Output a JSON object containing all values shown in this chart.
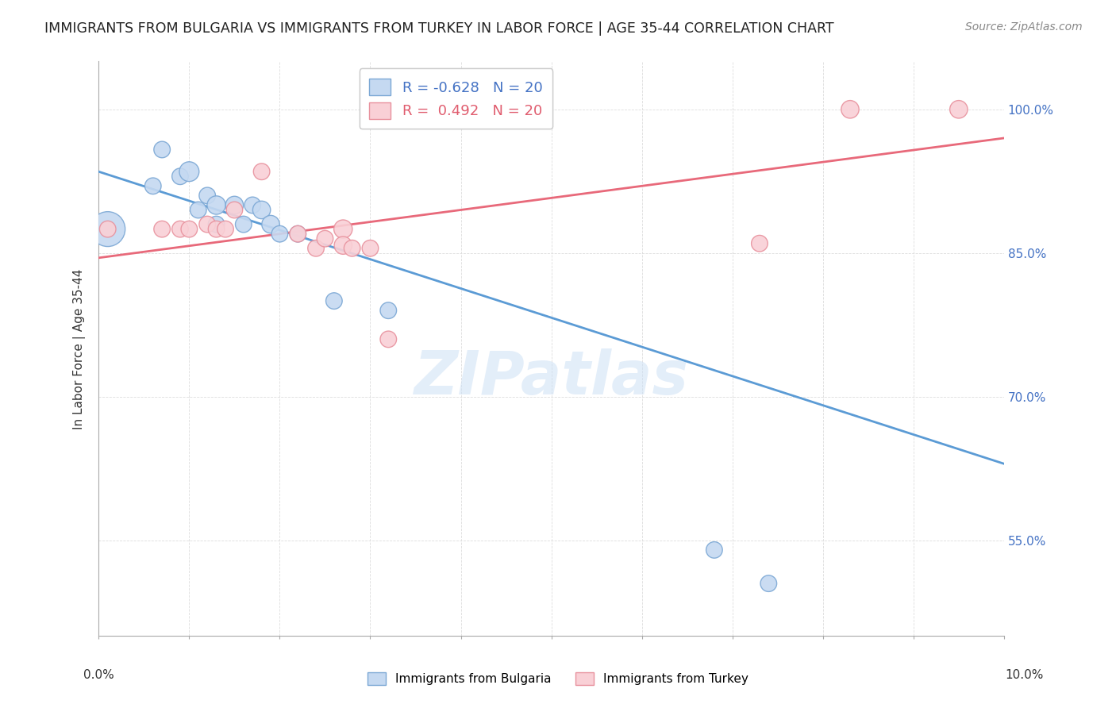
{
  "title": "IMMIGRANTS FROM BULGARIA VS IMMIGRANTS FROM TURKEY IN LABOR FORCE | AGE 35-44 CORRELATION CHART",
  "source": "Source: ZipAtlas.com",
  "ylabel": "In Labor Force | Age 35-44",
  "legend_label1": "Immigrants from Bulgaria",
  "legend_label2": "Immigrants from Turkey",
  "r_blue": -0.628,
  "r_pink": 0.492,
  "n_blue": 20,
  "n_pink": 20,
  "color_blue_fill": "#c5d9f1",
  "color_pink_fill": "#f9d0d6",
  "color_blue_edge": "#7ca8d5",
  "color_pink_edge": "#e8929e",
  "color_blue_line": "#5b9bd5",
  "color_pink_line": "#e8697a",
  "color_blue_text": "#4472c4",
  "color_pink_text": "#e05c6e",
  "ytick_labels": [
    "55.0%",
    "70.0%",
    "85.0%",
    "100.0%"
  ],
  "ytick_values": [
    0.55,
    0.7,
    0.85,
    1.0
  ],
  "blue_x": [
    0.001,
    0.006,
    0.007,
    0.009,
    0.01,
    0.011,
    0.012,
    0.013,
    0.013,
    0.015,
    0.016,
    0.017,
    0.018,
    0.019,
    0.02,
    0.022,
    0.026,
    0.032,
    0.068,
    0.074
  ],
  "blue_y": [
    0.875,
    0.92,
    0.958,
    0.93,
    0.935,
    0.895,
    0.91,
    0.9,
    0.88,
    0.9,
    0.88,
    0.9,
    0.895,
    0.88,
    0.87,
    0.87,
    0.8,
    0.79,
    0.54,
    0.505
  ],
  "blue_size": [
    250,
    55,
    55,
    55,
    80,
    55,
    55,
    70,
    55,
    65,
    55,
    55,
    65,
    65,
    55,
    55,
    55,
    55,
    55,
    55
  ],
  "pink_x": [
    0.001,
    0.007,
    0.009,
    0.01,
    0.012,
    0.013,
    0.014,
    0.015,
    0.018,
    0.022,
    0.024,
    0.025,
    0.027,
    0.027,
    0.028,
    0.03,
    0.032,
    0.073,
    0.083,
    0.095
  ],
  "pink_y": [
    0.875,
    0.875,
    0.875,
    0.875,
    0.88,
    0.875,
    0.875,
    0.895,
    0.935,
    0.87,
    0.855,
    0.865,
    0.875,
    0.858,
    0.855,
    0.855,
    0.76,
    0.86,
    1.0,
    1.0
  ],
  "pink_size": [
    55,
    55,
    55,
    55,
    55,
    55,
    55,
    55,
    55,
    55,
    55,
    55,
    70,
    65,
    55,
    55,
    55,
    55,
    65,
    65
  ],
  "blue_line_x0": 0.0,
  "blue_line_y0": 0.935,
  "blue_line_x1": 0.1,
  "blue_line_y1": 0.63,
  "pink_line_x0": 0.0,
  "pink_line_y0": 0.845,
  "pink_line_x1": 0.1,
  "pink_line_y1": 0.97,
  "watermark": "ZIPatlas",
  "bg_color": "#ffffff",
  "grid_color": "#dddddd",
  "xlim": [
    0.0,
    0.1
  ],
  "ylim": [
    0.45,
    1.05
  ]
}
